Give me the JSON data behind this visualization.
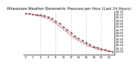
{
  "title": "Milwaukee Weather Barometric Pressure per Hour (Last 24 Hours)",
  "background_color": "#ffffff",
  "plot_bg_color": "#ffffff",
  "grid_color": "#888888",
  "line_color": "#dd0000",
  "dot_color": "#000000",
  "hours": [
    0,
    1,
    2,
    3,
    4,
    5,
    6,
    7,
    8,
    9,
    10,
    11,
    12,
    13,
    14,
    15,
    16,
    17,
    18,
    19,
    20,
    21,
    22,
    23
  ],
  "pressure": [
    30.22,
    30.22,
    30.2,
    30.19,
    30.18,
    30.16,
    30.12,
    30.06,
    29.98,
    29.9,
    29.8,
    29.7,
    29.6,
    29.5,
    29.42,
    29.35,
    29.28,
    29.22,
    29.16,
    29.12,
    29.08,
    29.05,
    29.02,
    29.0
  ],
  "trend": [
    30.22,
    30.21,
    30.19,
    30.17,
    30.15,
    30.11,
    30.06,
    29.99,
    29.91,
    29.82,
    29.72,
    29.62,
    29.52,
    29.43,
    29.35,
    29.28,
    29.22,
    29.16,
    29.12,
    29.08,
    29.05,
    29.03,
    29.01,
    28.99
  ],
  "ylim_min": 28.9,
  "ylim_max": 30.3,
  "ytick_values": [
    29.0,
    29.1,
    29.2,
    29.3,
    29.4,
    29.5,
    29.6,
    29.7,
    29.8,
    29.9,
    30.0,
    30.1,
    30.2,
    30.3
  ],
  "vgrid_positions": [
    4,
    8,
    12,
    16,
    20
  ],
  "title_fontsize": 3.8,
  "tick_fontsize": 2.8,
  "line_width": 0.6,
  "marker_size": 1.0
}
